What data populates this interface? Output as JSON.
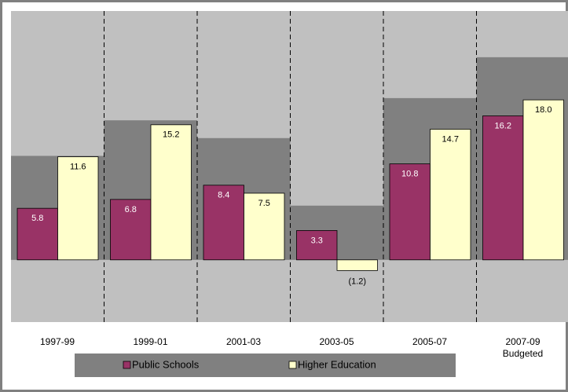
{
  "chart_data": {
    "type": "bar",
    "categories": [
      "1997-99",
      "1999-01",
      "2001-03",
      "2003-05",
      "2005-07",
      "2007-09\nBudgeted"
    ],
    "background_series": {
      "color": "#808080",
      "values": [
        11.7,
        15.7,
        13.7,
        6.1,
        18.2,
        22.8
      ]
    },
    "series": [
      {
        "name": "Public Schools",
        "color": "#993366",
        "values": [
          5.8,
          6.8,
          8.4,
          3.3,
          10.8,
          16.2
        ],
        "value_labels": [
          "5.8",
          "6.8",
          "8.4",
          "3.3",
          "10.8",
          "16.2"
        ],
        "label_color": "#ffffff"
      },
      {
        "name": "Higher Education",
        "color": "#ffffcc",
        "values": [
          11.6,
          15.2,
          7.5,
          -1.2,
          14.7,
          18.0
        ],
        "value_labels": [
          "11.6",
          "15.2",
          "7.5",
          "(1.2)",
          "14.7",
          "18.0"
        ],
        "label_color": "#000000"
      }
    ],
    "ylim": [
      -7,
      28
    ],
    "plot_background": "#c0c0c0",
    "legend": "bottom"
  }
}
